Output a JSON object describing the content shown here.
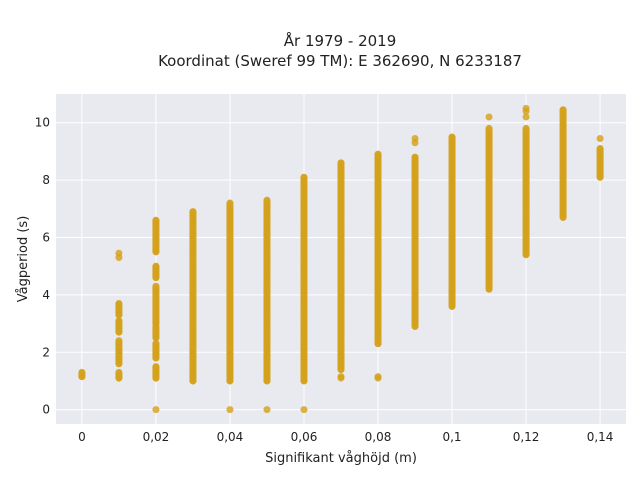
{
  "chart_data": {
    "type": "scatter",
    "title": [
      "År 1979 - 2019",
      "Koordinat (Sweref 99 TM): E 362690, N 6233187"
    ],
    "xlabel": "Signifikant våghöjd (m)",
    "ylabel": "Vågperiod (s)",
    "xlim": [
      -0.007,
      0.147
    ],
    "ylim": [
      -0.5,
      11.0
    ],
    "x_ticks": [
      0,
      0.02,
      0.04,
      0.06,
      0.08,
      0.1,
      0.12,
      0.14
    ],
    "x_tick_labels": [
      "0",
      "0,02",
      "0,04",
      "0,06",
      "0,08",
      "0,1",
      "0,12",
      "0,14"
    ],
    "y_ticks": [
      0,
      2,
      4,
      6,
      8,
      10
    ],
    "y_tick_labels": [
      "0",
      "2",
      "4",
      "6",
      "8",
      "10"
    ],
    "grid": true,
    "colors": {
      "marker": "#d4a017",
      "plot_bg": "#e9e9f0",
      "grid": "#ffffff"
    },
    "columns": [
      {
        "x": 0.0,
        "dense": [
          [
            1.15,
            1.3
          ]
        ],
        "points": []
      },
      {
        "x": 0.01,
        "dense": [
          [
            1.1,
            1.3
          ],
          [
            1.6,
            2.4
          ],
          [
            2.7,
            3.1
          ],
          [
            3.3,
            3.7
          ]
        ],
        "points": [
          5.3,
          5.45
        ]
      },
      {
        "x": 0.02,
        "dense": [
          [
            1.1,
            1.5
          ],
          [
            1.8,
            2.3
          ],
          [
            2.5,
            2.9
          ],
          [
            3.0,
            4.3
          ],
          [
            4.6,
            5.0
          ],
          [
            5.5,
            6.6
          ]
        ],
        "points": [
          0.0
        ]
      },
      {
        "x": 0.03,
        "dense": [
          [
            1.0,
            6.9
          ]
        ],
        "points": []
      },
      {
        "x": 0.04,
        "dense": [
          [
            1.0,
            7.2
          ]
        ],
        "points": [
          0.0
        ]
      },
      {
        "x": 0.05,
        "dense": [
          [
            1.0,
            7.3
          ]
        ],
        "points": [
          0.0
        ]
      },
      {
        "x": 0.06,
        "dense": [
          [
            1.0,
            8.1
          ]
        ],
        "points": [
          0.0
        ]
      },
      {
        "x": 0.07,
        "dense": [
          [
            1.4,
            8.6
          ]
        ],
        "points": [
          1.1,
          1.15
        ]
      },
      {
        "x": 0.08,
        "dense": [
          [
            2.3,
            8.9
          ]
        ],
        "points": [
          1.1,
          1.15
        ]
      },
      {
        "x": 0.09,
        "dense": [
          [
            2.9,
            8.8
          ]
        ],
        "points": [
          9.3,
          9.45
        ]
      },
      {
        "x": 0.1,
        "dense": [
          [
            3.6,
            9.5
          ]
        ],
        "points": []
      },
      {
        "x": 0.11,
        "dense": [
          [
            4.2,
            9.8
          ]
        ],
        "points": [
          10.2
        ]
      },
      {
        "x": 0.12,
        "dense": [
          [
            5.4,
            9.8
          ]
        ],
        "points": [
          10.2,
          10.4,
          10.5
        ]
      },
      {
        "x": 0.13,
        "dense": [
          [
            6.7,
            10.45
          ]
        ],
        "points": []
      },
      {
        "x": 0.14,
        "dense": [
          [
            8.1,
            9.1
          ]
        ],
        "points": [
          9.45
        ]
      }
    ]
  }
}
